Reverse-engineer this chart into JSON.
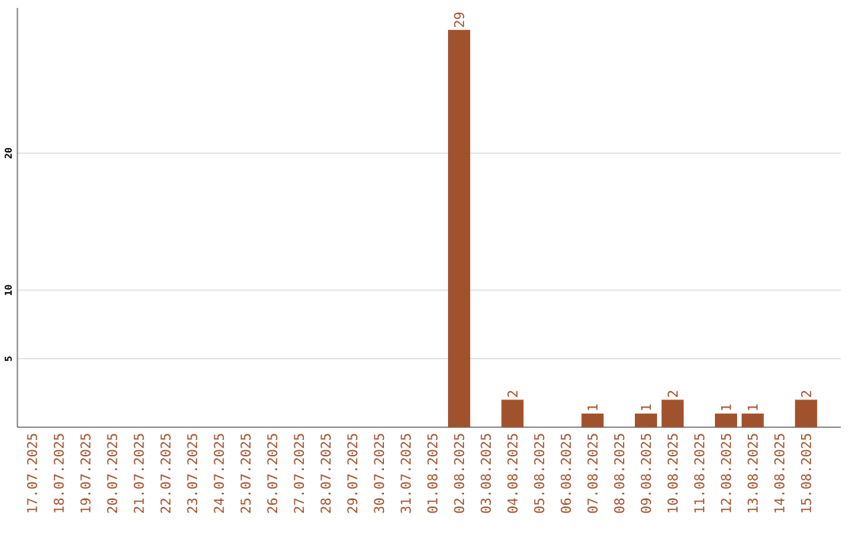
{
  "chart_data": {
    "type": "bar",
    "categories": [
      "17.07.2025",
      "18.07.2025",
      "19.07.2025",
      "20.07.2025",
      "21.07.2025",
      "22.07.2025",
      "23.07.2025",
      "24.07.2025",
      "25.07.2025",
      "26.07.2025",
      "27.07.2025",
      "28.07.2025",
      "29.07.2025",
      "30.07.2025",
      "31.07.2025",
      "01.08.2025",
      "02.08.2025",
      "03.08.2025",
      "04.08.2025",
      "05.08.2025",
      "06.08.2025",
      "07.08.2025",
      "08.08.2025",
      "09.08.2025",
      "10.08.2025",
      "11.08.2025",
      "12.08.2025",
      "13.08.2025",
      "14.08.2025",
      "15.08.2025"
    ],
    "values": [
      0,
      0,
      0,
      0,
      0,
      0,
      0,
      0,
      0,
      0,
      0,
      0,
      0,
      0,
      0,
      0,
      29,
      0,
      2,
      0,
      0,
      1,
      0,
      1,
      2,
      0,
      1,
      1,
      0,
      2
    ],
    "value_labels": [
      null,
      null,
      null,
      null,
      null,
      null,
      null,
      null,
      null,
      null,
      null,
      null,
      null,
      null,
      null,
      null,
      "29",
      null,
      "2",
      null,
      null,
      "1",
      null,
      "1",
      "2",
      null,
      "1",
      "1",
      null,
      "2"
    ],
    "color": "#a0522d",
    "ylim": [
      0,
      30.6
    ],
    "yticks": [
      5,
      10,
      20
    ],
    "grid": "y"
  }
}
